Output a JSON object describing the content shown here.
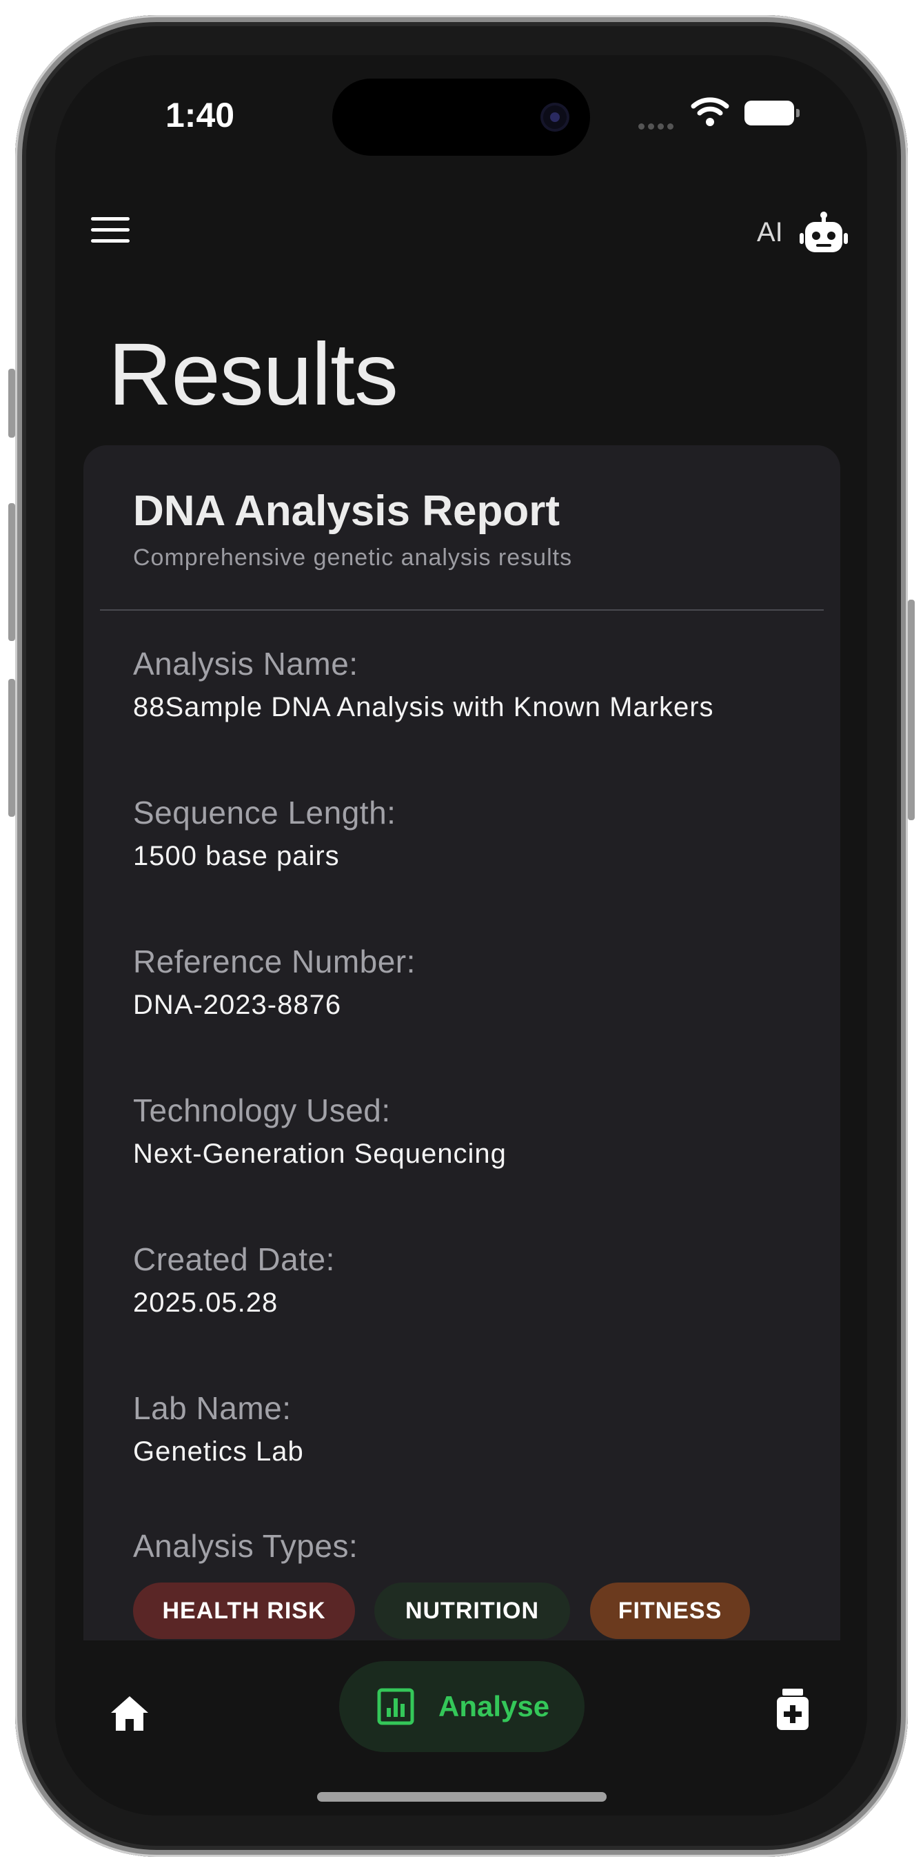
{
  "status_bar": {
    "time": "1:40"
  },
  "header": {
    "ai_label": "AI",
    "page_title": "Results"
  },
  "report": {
    "title": "DNA Analysis Report",
    "subtitle": "Comprehensive genetic analysis results",
    "fields": [
      {
        "label": "Analysis Name:",
        "value": "88Sample DNA Analysis with Known Markers"
      },
      {
        "label": "Sequence Length:",
        "value": "1500 base pairs"
      },
      {
        "label": "Reference Number:",
        "value": "DNA-2023-8876"
      },
      {
        "label": "Technology Used:",
        "value": "Next-Generation Sequencing"
      },
      {
        "label": "Created Date:",
        "value": "2025.05.28"
      },
      {
        "label": "Lab Name:",
        "value": "Genetics Lab"
      }
    ],
    "analysis_types_label": "Analysis Types:",
    "analysis_types": [
      {
        "label": "HEALTH RISK",
        "color": "#5a2626"
      },
      {
        "label": "NUTRITION",
        "color": "#1f2c22"
      },
      {
        "label": "FITNESS",
        "color": "#6b3a1e"
      }
    ]
  },
  "bottom_nav": {
    "home_icon": "home-icon",
    "analyse_label": "Analyse",
    "analyse_icon": "chart-icon",
    "right_icon": "medical-case-icon",
    "accent_color": "#34c759"
  }
}
